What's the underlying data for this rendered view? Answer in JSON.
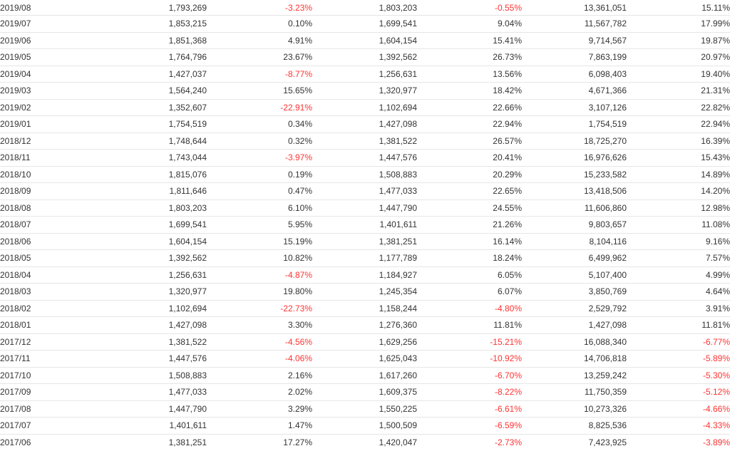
{
  "columns": [
    "month",
    "monthly_revenue",
    "mom_change",
    "last_year_revenue",
    "yoy_change",
    "cumulative_revenue",
    "cumulative_yoy_change"
  ],
  "colors": {
    "negative": "#ff3333",
    "text": "#333333",
    "row_border": "#e6e6e6"
  },
  "rows": [
    [
      "2019/08",
      "1,793,269",
      "-3.23%",
      "1,803,203",
      "-0.55%",
      "13,361,051",
      "15.11%"
    ],
    [
      "2019/07",
      "1,853,215",
      "0.10%",
      "1,699,541",
      "9.04%",
      "11,567,782",
      "17.99%"
    ],
    [
      "2019/06",
      "1,851,368",
      "4.91%",
      "1,604,154",
      "15.41%",
      "9,714,567",
      "19.87%"
    ],
    [
      "2019/05",
      "1,764,796",
      "23.67%",
      "1,392,562",
      "26.73%",
      "7,863,199",
      "20.97%"
    ],
    [
      "2019/04",
      "1,427,037",
      "-8.77%",
      "1,256,631",
      "13.56%",
      "6,098,403",
      "19.40%"
    ],
    [
      "2019/03",
      "1,564,240",
      "15.65%",
      "1,320,977",
      "18.42%",
      "4,671,366",
      "21.31%"
    ],
    [
      "2019/02",
      "1,352,607",
      "-22.91%",
      "1,102,694",
      "22.66%",
      "3,107,126",
      "22.82%"
    ],
    [
      "2019/01",
      "1,754,519",
      "0.34%",
      "1,427,098",
      "22.94%",
      "1,754,519",
      "22.94%"
    ],
    [
      "2018/12",
      "1,748,644",
      "0.32%",
      "1,381,522",
      "26.57%",
      "18,725,270",
      "16.39%"
    ],
    [
      "2018/11",
      "1,743,044",
      "-3.97%",
      "1,447,576",
      "20.41%",
      "16,976,626",
      "15.43%"
    ],
    [
      "2018/10",
      "1,815,076",
      "0.19%",
      "1,508,883",
      "20.29%",
      "15,233,582",
      "14.89%"
    ],
    [
      "2018/09",
      "1,811,646",
      "0.47%",
      "1,477,033",
      "22.65%",
      "13,418,506",
      "14.20%"
    ],
    [
      "2018/08",
      "1,803,203",
      "6.10%",
      "1,447,790",
      "24.55%",
      "11,606,860",
      "12.98%"
    ],
    [
      "2018/07",
      "1,699,541",
      "5.95%",
      "1,401,611",
      "21.26%",
      "9,803,657",
      "11.08%"
    ],
    [
      "2018/06",
      "1,604,154",
      "15.19%",
      "1,381,251",
      "16.14%",
      "8,104,116",
      "9.16%"
    ],
    [
      "2018/05",
      "1,392,562",
      "10.82%",
      "1,177,789",
      "18.24%",
      "6,499,962",
      "7.57%"
    ],
    [
      "2018/04",
      "1,256,631",
      "-4.87%",
      "1,184,927",
      "6.05%",
      "5,107,400",
      "4.99%"
    ],
    [
      "2018/03",
      "1,320,977",
      "19.80%",
      "1,245,354",
      "6.07%",
      "3,850,769",
      "4.64%"
    ],
    [
      "2018/02",
      "1,102,694",
      "-22.73%",
      "1,158,244",
      "-4.80%",
      "2,529,792",
      "3.91%"
    ],
    [
      "2018/01",
      "1,427,098",
      "3.30%",
      "1,276,360",
      "11.81%",
      "1,427,098",
      "11.81%"
    ],
    [
      "2017/12",
      "1,381,522",
      "-4.56%",
      "1,629,256",
      "-15.21%",
      "16,088,340",
      "-6.77%"
    ],
    [
      "2017/11",
      "1,447,576",
      "-4.06%",
      "1,625,043",
      "-10.92%",
      "14,706,818",
      "-5.89%"
    ],
    [
      "2017/10",
      "1,508,883",
      "2.16%",
      "1,617,260",
      "-6.70%",
      "13,259,242",
      "-5.30%"
    ],
    [
      "2017/09",
      "1,477,033",
      "2.02%",
      "1,609,375",
      "-8.22%",
      "11,750,359",
      "-5.12%"
    ],
    [
      "2017/08",
      "1,447,790",
      "3.29%",
      "1,550,225",
      "-6.61%",
      "10,273,326",
      "-4.66%"
    ],
    [
      "2017/07",
      "1,401,611",
      "1.47%",
      "1,500,509",
      "-6.59%",
      "8,825,536",
      "-4.33%"
    ],
    [
      "2017/06",
      "1,381,251",
      "17.27%",
      "1,420,047",
      "-2.73%",
      "7,423,925",
      "-3.89%"
    ]
  ]
}
